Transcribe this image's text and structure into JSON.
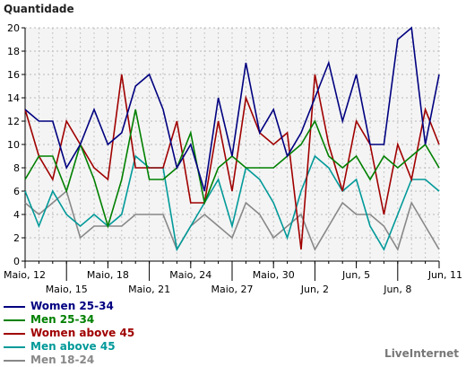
{
  "chart_data": {
    "type": "line",
    "ylabel": "Quantidade",
    "ylim": [
      0,
      20
    ],
    "yticks": [
      0,
      2,
      4,
      6,
      8,
      10,
      12,
      14,
      16,
      18,
      20
    ],
    "grid": true,
    "legend_position": "bottom-left",
    "x_ticks": [
      {
        "i": 0,
        "label": "Maio, 12"
      },
      {
        "i": 3,
        "label": "Maio, 15"
      },
      {
        "i": 6,
        "label": "Maio, 18"
      },
      {
        "i": 9,
        "label": "Maio, 21"
      },
      {
        "i": 12,
        "label": "Maio, 24"
      },
      {
        "i": 15,
        "label": "Maio, 27"
      },
      {
        "i": 18,
        "label": "Maio, 30"
      },
      {
        "i": 21,
        "label": "Jun, 2"
      },
      {
        "i": 24,
        "label": "Jun, 5"
      },
      {
        "i": 27,
        "label": "Jun, 8"
      },
      {
        "i": 30,
        "label": "Jun, 11"
      }
    ],
    "series": [
      {
        "name": "Women 25-34",
        "color": "#000080",
        "values": [
          13,
          12,
          12,
          8,
          10,
          13,
          10,
          11,
          15,
          16,
          13,
          8,
          10,
          6,
          14,
          9,
          17,
          11,
          13,
          9,
          11,
          14,
          17,
          12,
          16,
          10,
          10,
          19,
          20,
          10,
          16
        ]
      },
      {
        "name": "Men 25-34",
        "color": "#008000",
        "values": [
          7,
          9,
          9,
          6,
          10,
          7,
          3,
          7,
          13,
          7,
          7,
          8,
          11,
          5,
          8,
          9,
          8,
          8,
          8,
          9,
          10,
          12,
          9,
          8,
          9,
          7,
          9,
          8,
          9,
          10,
          8
        ]
      },
      {
        "name": "Women above 45",
        "color": "#a00000",
        "values": [
          13,
          9,
          7,
          12,
          10,
          8,
          7,
          16,
          8,
          8,
          8,
          12,
          5,
          5,
          12,
          6,
          14,
          11,
          10,
          11,
          1,
          16,
          10,
          6,
          12,
          10,
          4,
          10,
          7,
          13,
          10
        ]
      },
      {
        "name": "Men above 45",
        "color": "#009999",
        "values": [
          6,
          3,
          6,
          4,
          3,
          4,
          3,
          4,
          9,
          8,
          8,
          1,
          3,
          5,
          7,
          3,
          8,
          7,
          5,
          2,
          6,
          9,
          8,
          6,
          7,
          3,
          1,
          4,
          7,
          7,
          6
        ]
      },
      {
        "name": "Men 18-24",
        "color": "#888888",
        "values": [
          5,
          4,
          5,
          6,
          2,
          3,
          3,
          3,
          4,
          4,
          4,
          1,
          3,
          4,
          3,
          2,
          5,
          4,
          2,
          3,
          4,
          1,
          3,
          5,
          4,
          4,
          3,
          1,
          5,
          3,
          1
        ]
      }
    ]
  },
  "credit": "LiveInternet"
}
